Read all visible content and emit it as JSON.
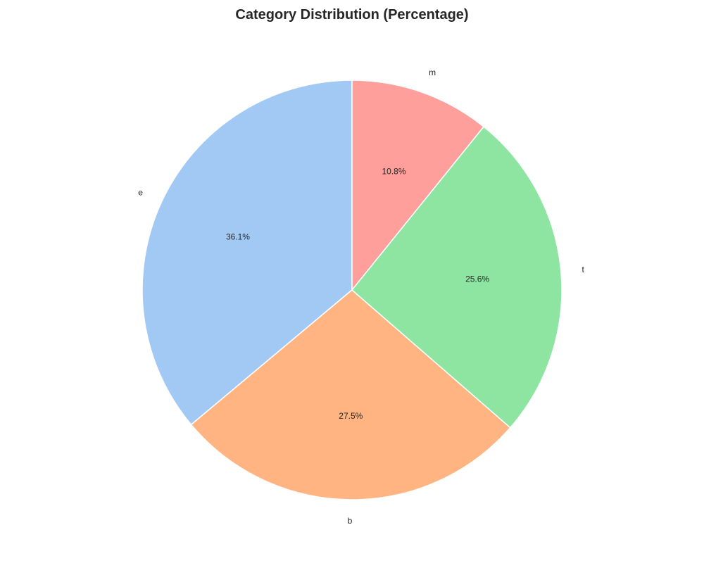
{
  "chart_data": {
    "type": "pie",
    "title": "Category Distribution (Percentage)",
    "start_angle_deg": 90,
    "direction": "counterclockwise",
    "slices": [
      {
        "label": "e",
        "value": 36.1,
        "pct_label": "36.1%",
        "color": "#a1c9f4"
      },
      {
        "label": "b",
        "value": 27.5,
        "pct_label": "27.5%",
        "color": "#ffb482"
      },
      {
        "label": "t",
        "value": 25.6,
        "pct_label": "25.6%",
        "color": "#8de5a1"
      },
      {
        "label": "m",
        "value": 10.8,
        "pct_label": "10.8%",
        "color": "#ff9f9b"
      }
    ],
    "slice_edge_color": "#ffffff"
  }
}
